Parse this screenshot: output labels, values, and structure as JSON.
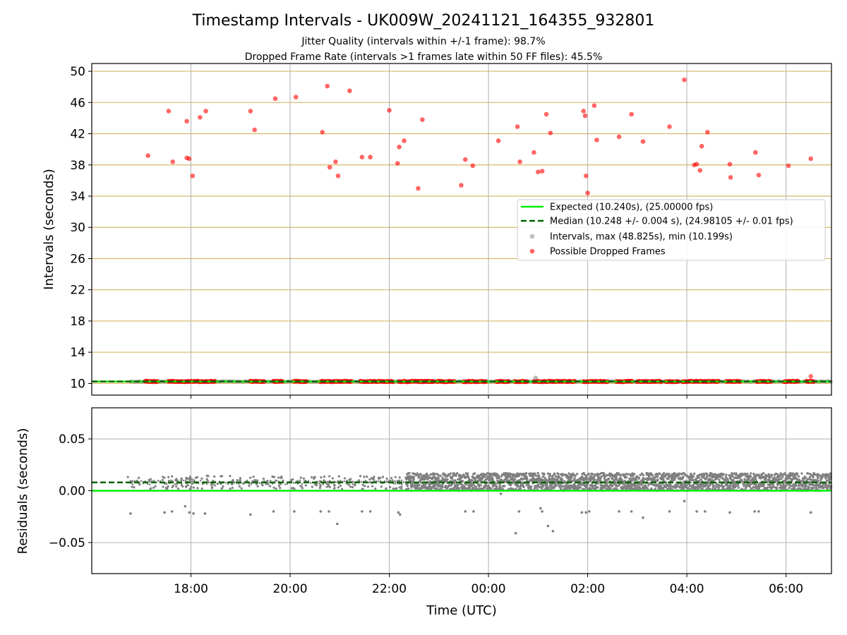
{
  "title": "Timestamp Intervals - UK009W_20241121_164355_932801",
  "subtitle_lines": [
    "Jitter Quality (intervals within +/-1 frame): 98.7%",
    "Dropped Frame Rate (intervals >1 frames late within 50 FF files): 45.5%"
  ],
  "colors": {
    "expected": "#00ee00",
    "median": "#006400",
    "intervals": "#808080",
    "dropped": "#ff0000",
    "hgrid_top": "#d9b86a",
    "vgrid": "#b0b0b0"
  },
  "chart_data": [
    {
      "type": "scatter",
      "title": "Timestamp Intervals - UK009W_20241121_164355_932801",
      "ylabel": "Intervals (seconds)",
      "xlabel": "",
      "xlim": [
        "2024-11-21T16:00",
        "2024-11-22T06:55"
      ],
      "ylim": [
        8.5,
        51
      ],
      "yticks": [
        10,
        14,
        18,
        22,
        26,
        30,
        34,
        38,
        42,
        46,
        50
      ],
      "ytick_labels": [
        "10",
        "14",
        "18",
        "22",
        "26",
        "30",
        "34",
        "38",
        "42",
        "46",
        "50"
      ],
      "grid": "horizontal and vertical",
      "legend_position": "center-right",
      "legend": [
        "Expected (10.240s), (25.00000 fps)",
        "Median (10.248 +/- 0.004 s), (24.98105 +/- 0.01 fps)",
        "Intervals, max (48.825s), min (10.199s)",
        "Possible Dropped Frames"
      ],
      "series": [
        {
          "name": "Expected (10.240s), (25.00000 fps)",
          "kind": "hline",
          "y": 10.24
        },
        {
          "name": "Median (10.248 +/- 0.004 s), (24.98105 +/- 0.01 fps)",
          "kind": "hline-dashed",
          "y": 10.248
        },
        {
          "name": "Intervals, max (48.825s), min (10.199s)",
          "kind": "scatter",
          "y_range": [
            10.199,
            48.825
          ],
          "note_points": [
            [
              "00:57",
              10.7
            ],
            [
              "06:30",
              10.9
            ]
          ]
        },
        {
          "name": "Possible Dropped Frames",
          "kind": "scatter",
          "points_high": [
            [
              "17:08",
              39.2
            ],
            [
              "17:33",
              44.9
            ],
            [
              "17:38",
              38.4
            ],
            [
              "17:55",
              43.6
            ],
            [
              "17:55",
              38.9
            ],
            [
              "17:58",
              38.8
            ],
            [
              "18:02",
              36.6
            ],
            [
              "18:11",
              44.1
            ],
            [
              "18:18",
              44.9
            ],
            [
              "19:12",
              44.9
            ],
            [
              "19:17",
              42.5
            ],
            [
              "19:42",
              46.5
            ],
            [
              "20:07",
              46.7
            ],
            [
              "20:39",
              42.2
            ],
            [
              "20:45",
              48.1
            ],
            [
              "20:48",
              37.7
            ],
            [
              "20:55",
              38.4
            ],
            [
              "20:58",
              36.6
            ],
            [
              "21:12",
              47.5
            ],
            [
              "21:27",
              39.0
            ],
            [
              "21:37",
              39.0
            ],
            [
              "22:00",
              45.0
            ],
            [
              "22:10",
              38.2
            ],
            [
              "22:12",
              40.3
            ],
            [
              "22:18",
              41.1
            ],
            [
              "22:35",
              35.0
            ],
            [
              "22:40",
              43.8
            ],
            [
              "23:27",
              35.4
            ],
            [
              "23:32",
              38.7
            ],
            [
              "23:41",
              37.9
            ],
            [
              "00:12",
              41.1
            ],
            [
              "00:35",
              42.9
            ],
            [
              "00:38",
              38.4
            ],
            [
              "00:55",
              39.6
            ],
            [
              "01:00",
              37.1
            ],
            [
              "01:05",
              37.2
            ],
            [
              "01:10",
              44.5
            ],
            [
              "01:15",
              42.1
            ],
            [
              "01:55",
              44.9
            ],
            [
              "01:57",
              44.3
            ],
            [
              "01:58",
              36.6
            ],
            [
              "02:00",
              34.4
            ],
            [
              "02:08",
              45.6
            ],
            [
              "02:11",
              41.2
            ],
            [
              "02:38",
              41.6
            ],
            [
              "02:53",
              44.5
            ],
            [
              "03:07",
              41.0
            ],
            [
              "03:39",
              42.9
            ],
            [
              "03:57",
              48.9
            ],
            [
              "04:09",
              38.0
            ],
            [
              "04:12",
              38.1
            ],
            [
              "04:16",
              37.3
            ],
            [
              "04:18",
              40.4
            ],
            [
              "04:25",
              42.2
            ],
            [
              "04:52",
              38.1
            ],
            [
              "04:53",
              36.4
            ],
            [
              "05:23",
              39.6
            ],
            [
              "05:27",
              36.7
            ],
            [
              "06:03",
              37.9
            ],
            [
              "06:30",
              38.8
            ]
          ],
          "baseline_value": 10.25,
          "baseline_segments": [
            [
              "17:05",
              "17:20"
            ],
            [
              "17:33",
              "17:50"
            ],
            [
              "17:52",
              "18:30"
            ],
            [
              "19:12",
              "19:30"
            ],
            [
              "19:40",
              "19:52"
            ],
            [
              "20:05",
              "20:20"
            ],
            [
              "20:37",
              "21:15"
            ],
            [
              "21:25",
              "21:48"
            ],
            [
              "21:50",
              "22:05"
            ],
            [
              "22:12",
              "22:55"
            ],
            [
              "22:35",
              "22:55"
            ],
            [
              "22:58",
              "23:20"
            ],
            [
              "23:30",
              "23:58"
            ],
            [
              "00:10",
              "00:25"
            ],
            [
              "00:32",
              "00:48"
            ],
            [
              "00:55",
              "01:45"
            ],
            [
              "01:55",
              "02:25"
            ],
            [
              "02:35",
              "02:55"
            ],
            [
              "03:00",
              "03:30"
            ],
            [
              "03:35",
              "03:50"
            ],
            [
              "03:55",
              "04:40"
            ],
            [
              "04:48",
              "05:05"
            ],
            [
              "05:25",
              "05:42"
            ],
            [
              "05:58",
              "06:15"
            ],
            [
              "06:25",
              "06:35"
            ]
          ]
        }
      ]
    },
    {
      "type": "scatter",
      "title": "",
      "ylabel": "Residuals (seconds)",
      "xlabel": "Time (UTC)",
      "xlim": [
        "2024-11-21T16:00",
        "2024-11-22T06:55"
      ],
      "ylim": [
        -0.08,
        0.08
      ],
      "yticks": [
        -0.05,
        0.0,
        0.05
      ],
      "ytick_labels": [
        "−0.05",
        "0.00",
        "0.05"
      ],
      "xticks": [
        "18:00",
        "20:00",
        "22:00",
        "00:00",
        "02:00",
        "04:00",
        "06:00"
      ],
      "grid": "horizontal and vertical",
      "series": [
        {
          "name": "",
          "kind": "hline",
          "y": 0.0
        },
        {
          "name": "",
          "kind": "hline-dashed",
          "y": 0.008
        },
        {
          "name": "",
          "kind": "scatter",
          "dense_band": {
            "from": "22:20",
            "to": "06:55",
            "y_range": [
              0.0,
              0.017
            ]
          },
          "sparse_cluster_y": 0.008,
          "outliers": [
            [
              "16:47",
              -0.022
            ],
            [
              "17:28",
              -0.021
            ],
            [
              "17:37",
              -0.02
            ],
            [
              "17:53",
              -0.015
            ],
            [
              "17:58",
              -0.021
            ],
            [
              "18:03",
              -0.022
            ],
            [
              "18:17",
              -0.022
            ],
            [
              "19:12",
              -0.023
            ],
            [
              "19:40",
              -0.02
            ],
            [
              "20:05",
              -0.02
            ],
            [
              "20:37",
              -0.02
            ],
            [
              "20:47",
              -0.02
            ],
            [
              "20:57",
              -0.032
            ],
            [
              "21:27",
              -0.02
            ],
            [
              "21:37",
              -0.02
            ],
            [
              "22:11",
              -0.021
            ],
            [
              "22:13",
              -0.023
            ],
            [
              "23:32",
              -0.02
            ],
            [
              "23:42",
              -0.02
            ],
            [
              "00:15",
              -0.003
            ],
            [
              "00:33",
              -0.041
            ],
            [
              "00:37",
              -0.02
            ],
            [
              "01:03",
              -0.017
            ],
            [
              "01:05",
              -0.02
            ],
            [
              "01:12",
              -0.034
            ],
            [
              "01:18",
              -0.039
            ],
            [
              "01:53",
              -0.021
            ],
            [
              "01:58",
              -0.021
            ],
            [
              "02:02",
              -0.02
            ],
            [
              "02:38",
              -0.02
            ],
            [
              "02:53",
              -0.02
            ],
            [
              "03:07",
              -0.026
            ],
            [
              "03:39",
              -0.02
            ],
            [
              "03:57",
              -0.01
            ],
            [
              "04:12",
              -0.02
            ],
            [
              "04:22",
              -0.02
            ],
            [
              "04:52",
              -0.021
            ],
            [
              "05:22",
              -0.02
            ],
            [
              "05:27",
              -0.02
            ],
            [
              "06:30",
              -0.021
            ]
          ]
        }
      ]
    }
  ]
}
